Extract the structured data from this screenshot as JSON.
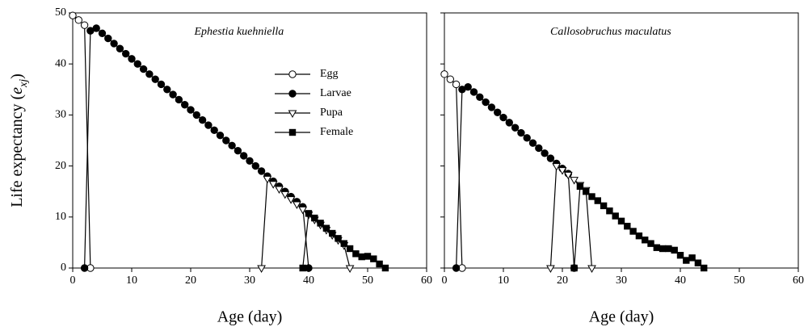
{
  "chart_data": [
    {
      "type": "line",
      "title": "Ephestia kuehniella",
      "xlabel": "Age (day)",
      "ylabel": [
        "Life expectancy (",
        "e",
        "xj",
        ")"
      ],
      "xlim": [
        0,
        60
      ],
      "xticks": [
        0,
        10,
        20,
        30,
        40,
        50,
        60
      ],
      "ylim": [
        0,
        50
      ],
      "yticks": [
        0,
        10,
        20,
        30,
        40,
        50
      ],
      "ytick_labels": true,
      "legend": "upper center",
      "series": [
        {
          "name": "Egg",
          "marker": "open-circle",
          "color": "#000000",
          "x": [
            0,
            1,
            2,
            3
          ],
          "values": [
            49.5,
            48.6,
            47.6,
            0
          ]
        },
        {
          "name": "Larvae",
          "marker": "filled-circle",
          "color": "#000000",
          "x": [
            2,
            3,
            4,
            5,
            6,
            7,
            8,
            9,
            10,
            11,
            12,
            13,
            14,
            15,
            16,
            17,
            18,
            19,
            20,
            21,
            22,
            23,
            24,
            25,
            26,
            27,
            28,
            29,
            30,
            31,
            32,
            33,
            34,
            35,
            36,
            37,
            38,
            39,
            40
          ],
          "values": [
            0,
            46.5,
            47,
            46,
            45,
            44,
            43,
            42,
            41,
            40,
            39,
            38,
            37,
            36,
            35,
            34,
            33,
            32,
            31,
            30,
            29,
            28,
            27,
            26,
            25,
            24,
            23,
            22,
            21,
            20,
            19,
            18,
            17,
            16,
            15,
            14,
            13,
            12,
            0
          ]
        },
        {
          "name": "Pupa",
          "marker": "open-triangle-down",
          "color": "#000000",
          "x": [
            32,
            33,
            34,
            35,
            36,
            37,
            38,
            39,
            40,
            41,
            42,
            43,
            44,
            45,
            46,
            47
          ],
          "values": [
            0,
            17.5,
            16.5,
            15.5,
            14.5,
            13.5,
            12.5,
            11.5,
            10.5,
            9.5,
            8.5,
            7.5,
            6.5,
            5.5,
            4.5,
            0
          ]
        },
        {
          "name": "Female",
          "marker": "filled-square",
          "color": "#000000",
          "x": [
            39,
            40,
            41,
            42,
            43,
            44,
            45,
            46,
            47,
            48,
            49,
            50,
            51,
            52,
            53
          ],
          "values": [
            0,
            10.7,
            9.8,
            8.8,
            7.8,
            6.8,
            5.8,
            4.8,
            3.8,
            2.8,
            2.2,
            2.3,
            1.8,
            0.8,
            0
          ]
        }
      ]
    },
    {
      "type": "line",
      "title": "Callosobruchus maculatus",
      "xlabel": "Age (day)",
      "xlim": [
        0,
        60
      ],
      "xticks": [
        0,
        10,
        20,
        30,
        40,
        50,
        60
      ],
      "ylim": [
        0,
        50
      ],
      "yticks": [
        0,
        10,
        20,
        30,
        40,
        50
      ],
      "ytick_labels": false,
      "series": [
        {
          "marker": "open-circle",
          "color": "#000000",
          "x": [
            0,
            1,
            2,
            3
          ],
          "values": [
            38,
            37,
            36,
            0
          ]
        },
        {
          "marker": "filled-circle",
          "color": "#000000",
          "x": [
            2,
            3,
            4,
            5,
            6,
            7,
            8,
            9,
            10,
            11,
            12,
            13,
            14,
            15,
            16,
            17,
            18,
            19,
            20,
            21,
            22
          ],
          "values": [
            0,
            35,
            35.5,
            34.5,
            33.5,
            32.5,
            31.5,
            30.5,
            29.5,
            28.5,
            27.5,
            26.5,
            25.5,
            24.5,
            23.5,
            22.5,
            21.5,
            20.5,
            19.5,
            18.5,
            0
          ]
        },
        {
          "marker": "open-triangle-down",
          "color": "#000000",
          "x": [
            18,
            19,
            20,
            21,
            22,
            23,
            24,
            25
          ],
          "values": [
            0,
            20,
            19.2,
            18.3,
            17.3,
            16.3,
            15.3,
            0
          ]
        },
        {
          "marker": "filled-square",
          "color": "#000000",
          "x": [
            22,
            23,
            24,
            25,
            26,
            27,
            28,
            29,
            30,
            31,
            32,
            33,
            34,
            35,
            36,
            37,
            38,
            39,
            40,
            41,
            42,
            43,
            44
          ],
          "values": [
            0,
            16,
            15,
            14,
            13.2,
            12.2,
            11.2,
            10.2,
            9.2,
            8.2,
            7.2,
            6.3,
            5.5,
            4.8,
            4,
            3.8,
            3.8,
            3.5,
            2.5,
            1.5,
            2,
            1,
            0
          ]
        }
      ]
    }
  ]
}
